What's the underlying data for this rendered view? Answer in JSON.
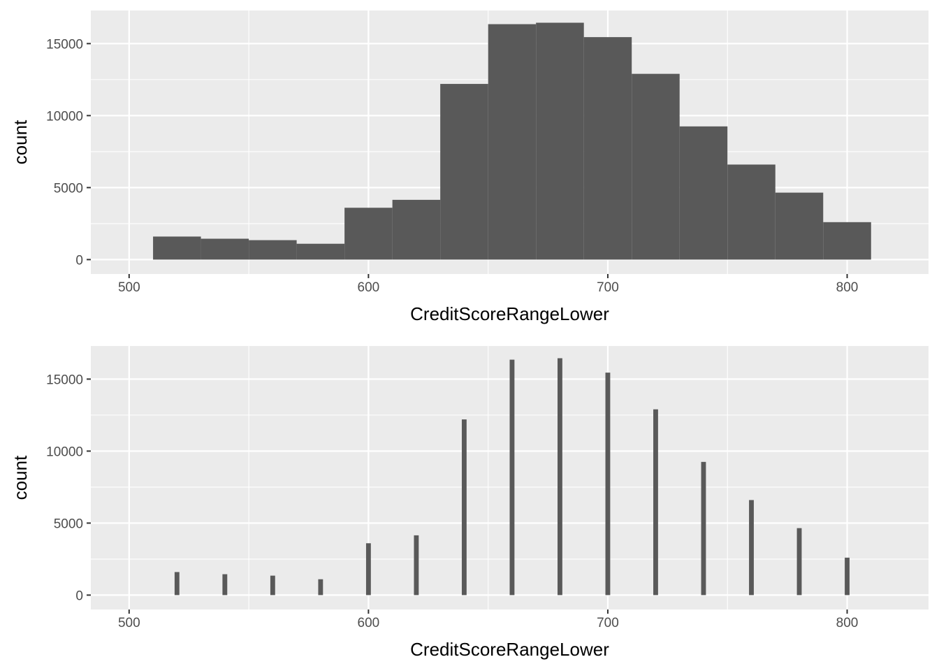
{
  "chart_data": [
    {
      "type": "bar",
      "variant": "histogram",
      "title": "",
      "xlabel": "CreditScoreRangeLower",
      "ylabel": "count",
      "xlim": [
        484,
        834
      ],
      "ylim": [
        -1000,
        17300
      ],
      "xticks": [
        500,
        600,
        700,
        800
      ],
      "yticks": [
        0,
        5000,
        10000,
        15000
      ],
      "xtick_labels": [
        "500",
        "600",
        "700",
        "800"
      ],
      "ytick_labels": [
        "0",
        "5000",
        "10000",
        "15000"
      ],
      "bin_width": 20,
      "x": [
        520,
        540,
        560,
        580,
        600,
        620,
        640,
        660,
        680,
        700,
        720,
        740,
        760,
        780,
        800
      ],
      "values": [
        1600,
        1450,
        1350,
        1100,
        3600,
        4150,
        12200,
        16350,
        16450,
        15450,
        12900,
        9250,
        6600,
        4650,
        2600
      ],
      "bar_color": "#595959",
      "panel_background": "#ebebeb",
      "grid": true
    },
    {
      "type": "bar",
      "variant": "narrow-bars",
      "title": "",
      "xlabel": "CreditScoreRangeLower",
      "ylabel": "count",
      "xlim": [
        484,
        834
      ],
      "ylim": [
        -1000,
        17300
      ],
      "xticks": [
        500,
        600,
        700,
        800
      ],
      "yticks": [
        0,
        5000,
        10000,
        15000
      ],
      "xtick_labels": [
        "500",
        "600",
        "700",
        "800"
      ],
      "ytick_labels": [
        "0",
        "5000",
        "10000",
        "15000"
      ],
      "bin_width": 2,
      "x": [
        520,
        540,
        560,
        580,
        600,
        620,
        640,
        660,
        680,
        700,
        720,
        740,
        760,
        780,
        800
      ],
      "values": [
        1600,
        1450,
        1350,
        1100,
        3600,
        4150,
        12200,
        16350,
        16450,
        15450,
        12900,
        9250,
        6600,
        4650,
        2600
      ],
      "bar_color": "#595959",
      "panel_background": "#ebebeb",
      "grid": true
    }
  ]
}
